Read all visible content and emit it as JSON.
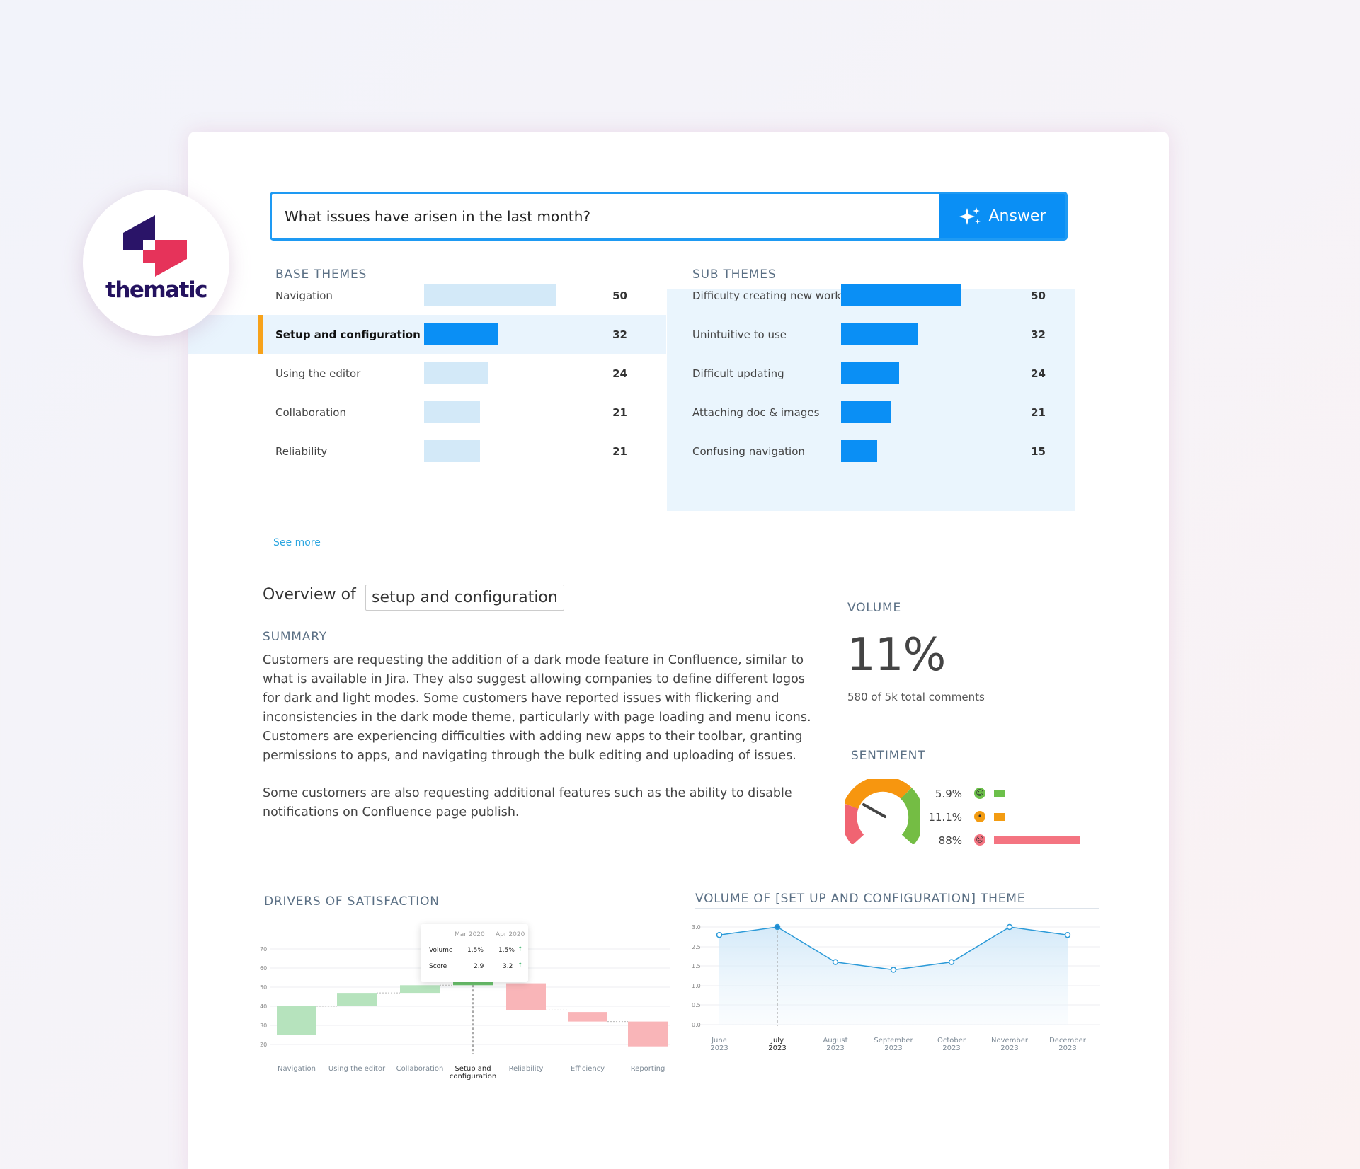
{
  "brand": {
    "name": "thematic"
  },
  "search": {
    "query": "What issues have arisen in the last month?",
    "button_label": "Answer"
  },
  "base_themes": {
    "title": "BASE THEMES",
    "items": [
      {
        "label": "Navigation",
        "value": 50
      },
      {
        "label": "Setup and configuration",
        "value": 32,
        "selected": true
      },
      {
        "label": "Using the editor",
        "value": 24
      },
      {
        "label": "Collaboration",
        "value": 21
      },
      {
        "label": "Reliability",
        "value": 21
      }
    ],
    "see_more": "See more"
  },
  "sub_themes": {
    "title": "SUB THEMES",
    "items": [
      {
        "label": "Difficulty creating new work",
        "value": 50
      },
      {
        "label": "Unintuitive to use",
        "value": 32
      },
      {
        "label": "Difficult updating",
        "value": 24
      },
      {
        "label": "Attaching doc & images",
        "value": 21
      },
      {
        "label": "Confusing navigation",
        "value": 15
      }
    ]
  },
  "overview": {
    "prefix": "Overview of",
    "theme": "setup and configuration",
    "summary_title": "SUMMARY",
    "summary_p1": "Customers are requesting the addition of a dark mode feature in Confluence, similar to what is available in Jira. They also suggest allowing companies to define different logos for dark and light modes. Some customers have reported issues with flickering and inconsistencies in the dark mode theme, particularly with page loading and menu icons. Customers are experiencing difficulties with adding new apps to their toolbar, granting permissions to apps, and navigating through the bulk editing and uploading of issues.",
    "summary_p2": "Some customers are also requesting additional features such as the ability to disable notifications on Confluence page publish."
  },
  "volume": {
    "title": "VOLUME",
    "value": "11%",
    "caption": "580 of 5k total comments"
  },
  "sentiment": {
    "title": "SENTIMENT",
    "rows": [
      {
        "label": "5.9%",
        "value": 5.9,
        "icon": "happy-face-icon",
        "color": "#6cc04a"
      },
      {
        "label": "11.1%",
        "value": 11.1,
        "icon": "neutral-face-icon",
        "color": "#f39c12"
      },
      {
        "label": "88%",
        "value": 88,
        "icon": "sad-face-icon",
        "color": "#f47481"
      }
    ]
  },
  "drivers": {
    "title": "DRIVERS OF SATISFACTION",
    "tooltip": {
      "cols": [
        "Mar 2020",
        "Apr 2020"
      ],
      "rows": [
        {
          "label": "Volume",
          "a": "1.5%",
          "b": "1.5%"
        },
        {
          "label": "Score",
          "a": "2.9",
          "b": "3.2"
        }
      ]
    }
  },
  "trend": {
    "title": "VOLUME OF [SET UP AND CONFIGURATION] THEME"
  },
  "chart_data": [
    {
      "type": "bar",
      "title": "DRIVERS OF SATISFACTION",
      "subtype": "waterfall",
      "categories": [
        "Navigation",
        "Using the editor",
        "Collaboration",
        "Setup and configuration",
        "Reliability",
        "Efficiency",
        "Reporting"
      ],
      "ranges": [
        [
          25,
          40
        ],
        [
          40,
          47
        ],
        [
          47,
          51
        ],
        [
          51,
          57
        ],
        [
          38,
          52
        ],
        [
          32,
          37
        ],
        [
          19,
          32
        ]
      ],
      "direction": [
        "up",
        "up",
        "up",
        "up",
        "down",
        "down",
        "down"
      ],
      "yticks": [
        20,
        30,
        40,
        50,
        60,
        70
      ],
      "ylim": [
        20,
        75
      ]
    },
    {
      "type": "area",
      "title": "VOLUME OF [SET UP AND CONFIGURATION] THEME",
      "x": [
        "June 2023",
        "July 2023",
        "August 2023",
        "September 2023",
        "October 2023",
        "November 2023",
        "December 2023"
      ],
      "values": [
        2.8,
        3.0,
        1.7,
        1.4,
        1.7,
        3.0,
        2.8
      ],
      "yticks": [
        0,
        0.5,
        1.0,
        1.5,
        2.5,
        3.0
      ],
      "highlight": "July 2023"
    }
  ]
}
